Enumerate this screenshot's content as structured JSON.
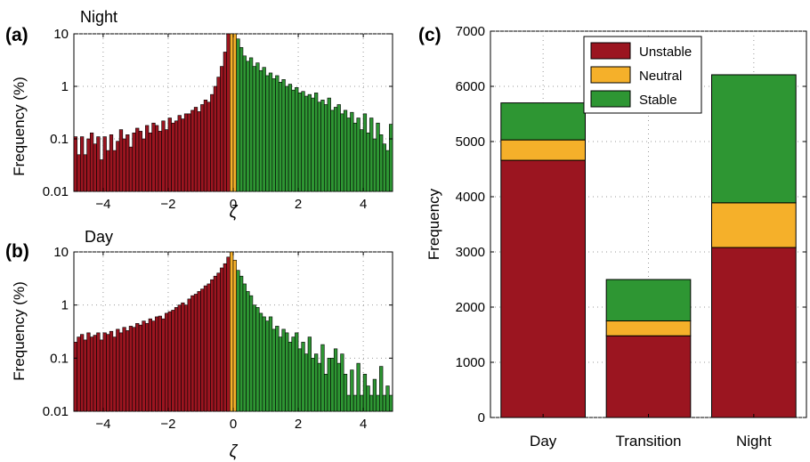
{
  "colors": {
    "unstable": "#9b1520",
    "neutral": "#f5b02a",
    "stable": "#2e9633",
    "grid": "#9a9a9a"
  },
  "chart_data": [
    {
      "id": "a",
      "panel_label": "(a)",
      "type": "bar",
      "title": "Night",
      "xlabel": "ζ",
      "ylabel": "Frequency (%)",
      "yscale": "log",
      "xlim": [
        -4.9,
        4.9
      ],
      "ylim": [
        0.01,
        10
      ],
      "xticks": [
        -4,
        -2,
        0,
        2,
        4
      ],
      "xtick_labels": [
        "−4",
        "−2",
        "0",
        "2",
        "4"
      ],
      "yticks": [
        0.01,
        0.1,
        1,
        10
      ],
      "ytick_labels": [
        "0.01",
        "0.1",
        "1",
        "10"
      ],
      "grid": true,
      "bin_width": 0.1,
      "x": [
        -4.85,
        -4.75,
        -4.65,
        -4.55,
        -4.45,
        -4.35,
        -4.25,
        -4.15,
        -4.05,
        -3.95,
        -3.85,
        -3.75,
        -3.65,
        -3.55,
        -3.45,
        -3.35,
        -3.25,
        -3.15,
        -3.05,
        -2.95,
        -2.85,
        -2.75,
        -2.65,
        -2.55,
        -2.45,
        -2.35,
        -2.25,
        -2.15,
        -2.05,
        -1.95,
        -1.85,
        -1.75,
        -1.65,
        -1.55,
        -1.45,
        -1.35,
        -1.25,
        -1.15,
        -1.05,
        -0.95,
        -0.85,
        -0.75,
        -0.65,
        -0.55,
        -0.45,
        -0.35,
        -0.25,
        -0.15,
        -0.05,
        0.05,
        0.15,
        0.25,
        0.35,
        0.45,
        0.55,
        0.65,
        0.75,
        0.85,
        0.95,
        1.05,
        1.15,
        1.25,
        1.35,
        1.45,
        1.55,
        1.65,
        1.75,
        1.85,
        1.95,
        2.05,
        2.15,
        2.25,
        2.35,
        2.45,
        2.55,
        2.65,
        2.75,
        2.85,
        2.95,
        3.05,
        3.15,
        3.25,
        3.35,
        3.45,
        3.55,
        3.65,
        3.75,
        3.85,
        3.95,
        4.05,
        4.15,
        4.25,
        4.35,
        4.45,
        4.55,
        4.65,
        4.75,
        4.85
      ],
      "values": [
        0.11,
        0.05,
        0.11,
        0.05,
        0.1,
        0.13,
        0.08,
        0.11,
        0.04,
        0.11,
        0.06,
        0.12,
        0.06,
        0.09,
        0.15,
        0.1,
        0.12,
        0.07,
        0.13,
        0.16,
        0.14,
        0.1,
        0.18,
        0.13,
        0.2,
        0.18,
        0.14,
        0.22,
        0.15,
        0.25,
        0.2,
        0.22,
        0.28,
        0.24,
        0.3,
        0.3,
        0.35,
        0.4,
        0.33,
        0.45,
        0.55,
        0.5,
        0.7,
        1.0,
        1.5,
        2.4,
        4.5,
        10,
        10,
        10,
        8,
        5.5,
        3.8,
        3.0,
        3.5,
        2.4,
        2.8,
        2.0,
        2.3,
        1.6,
        1.8,
        1.4,
        1.6,
        1.2,
        1.35,
        1.0,
        1.1,
        0.85,
        0.95,
        0.75,
        0.8,
        0.65,
        0.7,
        0.6,
        0.75,
        0.5,
        0.55,
        0.45,
        0.6,
        0.35,
        0.4,
        0.45,
        0.3,
        0.35,
        0.25,
        0.32,
        0.2,
        0.25,
        0.15,
        0.3,
        0.13,
        0.25,
        0.1,
        0.2,
        0.12,
        0.08,
        0.06,
        0.19
      ],
      "series_regions": [
        {
          "name": "Unstable",
          "range": [
            -4.9,
            -0.1
          ]
        },
        {
          "name": "Neutral",
          "range": [
            -0.1,
            0.1
          ]
        },
        {
          "name": "Stable",
          "range": [
            0.1,
            4.9
          ]
        }
      ]
    },
    {
      "id": "b",
      "panel_label": "(b)",
      "type": "bar",
      "title": "Day",
      "xlabel": "ζ",
      "ylabel": "Frequency (%)",
      "yscale": "log",
      "xlim": [
        -4.9,
        4.9
      ],
      "ylim": [
        0.01,
        10
      ],
      "xticks": [
        -4,
        -2,
        0,
        2,
        4
      ],
      "xtick_labels": [
        "−4",
        "−2",
        "0",
        "2",
        "4"
      ],
      "yticks": [
        0.01,
        0.1,
        1,
        10
      ],
      "ytick_labels": [
        "0.01",
        "0.1",
        "1",
        "10"
      ],
      "grid": true,
      "bin_width": 0.1,
      "x": [
        -4.85,
        -4.75,
        -4.65,
        -4.55,
        -4.45,
        -4.35,
        -4.25,
        -4.15,
        -4.05,
        -3.95,
        -3.85,
        -3.75,
        -3.65,
        -3.55,
        -3.45,
        -3.35,
        -3.25,
        -3.15,
        -3.05,
        -2.95,
        -2.85,
        -2.75,
        -2.65,
        -2.55,
        -2.45,
        -2.35,
        -2.25,
        -2.15,
        -2.05,
        -1.95,
        -1.85,
        -1.75,
        -1.65,
        -1.55,
        -1.45,
        -1.35,
        -1.25,
        -1.15,
        -1.05,
        -0.95,
        -0.85,
        -0.75,
        -0.65,
        -0.55,
        -0.45,
        -0.35,
        -0.25,
        -0.15,
        -0.05,
        0.05,
        0.15,
        0.25,
        0.35,
        0.45,
        0.55,
        0.65,
        0.75,
        0.85,
        0.95,
        1.05,
        1.15,
        1.25,
        1.35,
        1.45,
        1.55,
        1.65,
        1.75,
        1.85,
        1.95,
        2.05,
        2.15,
        2.25,
        2.35,
        2.45,
        2.55,
        2.65,
        2.75,
        2.85,
        2.95,
        3.05,
        3.15,
        3.25,
        3.35,
        3.45,
        3.55,
        3.65,
        3.75,
        3.85,
        3.95,
        4.05,
        4.15,
        4.25,
        4.35,
        4.45,
        4.55,
        4.65,
        4.75,
        4.85
      ],
      "values": [
        0.2,
        0.25,
        0.28,
        0.22,
        0.3,
        0.25,
        0.27,
        0.3,
        0.22,
        0.3,
        0.28,
        0.32,
        0.25,
        0.35,
        0.3,
        0.38,
        0.33,
        0.4,
        0.38,
        0.45,
        0.42,
        0.5,
        0.45,
        0.55,
        0.5,
        0.6,
        0.62,
        0.55,
        0.7,
        0.75,
        0.8,
        0.9,
        1.0,
        1.1,
        1.0,
        1.3,
        1.5,
        1.6,
        1.8,
        2.0,
        2.3,
        2.5,
        3.0,
        3.5,
        4.0,
        5.0,
        6.0,
        8.0,
        10,
        7.0,
        4.5,
        3.5,
        2.5,
        1.8,
        1.5,
        1.0,
        0.9,
        0.7,
        0.6,
        0.5,
        0.6,
        0.35,
        0.4,
        0.25,
        0.35,
        0.3,
        0.2,
        0.25,
        0.3,
        0.15,
        0.2,
        0.12,
        0.25,
        0.1,
        0.12,
        0.08,
        0.18,
        0.05,
        0.1,
        0.1,
        0.15,
        0.08,
        0.12,
        0.05,
        0.02,
        0.06,
        0.02,
        0.08,
        0.02,
        0.05,
        0.03,
        0.02,
        0.04,
        0.02,
        0.07,
        0.02,
        0.03,
        0.02
      ],
      "series_regions": [
        {
          "name": "Unstable",
          "range": [
            -4.9,
            -0.1
          ]
        },
        {
          "name": "Neutral",
          "range": [
            -0.1,
            0.1
          ]
        },
        {
          "name": "Stable",
          "range": [
            0.1,
            4.9
          ]
        }
      ]
    },
    {
      "id": "c",
      "panel_label": "(c)",
      "type": "bar",
      "stacked": true,
      "title": "",
      "xlabel": "",
      "ylabel": "Frequency",
      "categories": [
        "Day",
        "Transition",
        "Night"
      ],
      "series": [
        {
          "name": "Unstable",
          "values": [
            4660,
            1480,
            3080
          ]
        },
        {
          "name": "Neutral",
          "values": [
            370,
            270,
            810
          ]
        },
        {
          "name": "Stable",
          "values": [
            670,
            750,
            2320
          ]
        }
      ],
      "ylim": [
        0,
        7000
      ],
      "yticks": [
        0,
        1000,
        2000,
        3000,
        4000,
        5000,
        6000,
        7000
      ],
      "ytick_labels": [
        "0",
        "1000",
        "2000",
        "3000",
        "4000",
        "5000",
        "6000",
        "7000"
      ],
      "grid": true,
      "legend": {
        "position": "top-center",
        "entries": [
          "Unstable",
          "Neutral",
          "Stable"
        ]
      }
    }
  ]
}
